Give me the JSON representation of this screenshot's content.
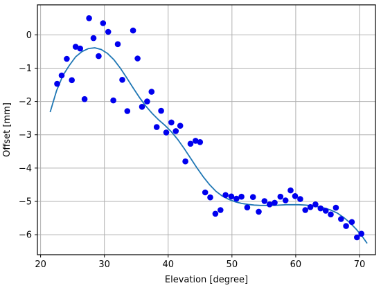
{
  "chart_data": {
    "type": "scatter",
    "xlabel": "Elevation [degree]",
    "ylabel": "Offset [mm]",
    "xlim": [
      19.5,
      72.5
    ],
    "ylim": [
      -6.6,
      0.9
    ],
    "x_ticks": [
      20,
      30,
      40,
      50,
      60,
      70
    ],
    "y_ticks": [
      0,
      -1,
      -2,
      -3,
      -4,
      -5,
      -6
    ],
    "grid": true,
    "colors": {
      "points": "#0000ee",
      "fit": "#1f77b4",
      "grid": "#b0b0b0"
    },
    "points": [
      [
        22.6,
        -1.47
      ],
      [
        23.3,
        -1.22
      ],
      [
        24.1,
        -0.72
      ],
      [
        24.9,
        -1.36
      ],
      [
        25.5,
        -0.36
      ],
      [
        26.2,
        -0.41
      ],
      [
        26.9,
        -1.93
      ],
      [
        27.6,
        0.5
      ],
      [
        28.3,
        -0.1
      ],
      [
        29.1,
        -0.64
      ],
      [
        29.8,
        0.35
      ],
      [
        30.6,
        0.09
      ],
      [
        31.4,
        -1.97
      ],
      [
        32.1,
        -0.28
      ],
      [
        32.8,
        -1.35
      ],
      [
        33.6,
        -2.29
      ],
      [
        34.5,
        0.13
      ],
      [
        35.2,
        -0.71
      ],
      [
        35.9,
        -2.16
      ],
      [
        36.7,
        -2.0
      ],
      [
        37.4,
        -1.71
      ],
      [
        38.2,
        -2.77
      ],
      [
        38.9,
        -2.28
      ],
      [
        39.7,
        -2.93
      ],
      [
        40.5,
        -2.63
      ],
      [
        41.2,
        -2.89
      ],
      [
        41.9,
        -2.73
      ],
      [
        42.7,
        -3.8
      ],
      [
        43.5,
        -3.27
      ],
      [
        44.3,
        -3.18
      ],
      [
        45.0,
        -3.22
      ],
      [
        45.8,
        -4.73
      ],
      [
        46.6,
        -4.88
      ],
      [
        47.4,
        -5.37
      ],
      [
        48.2,
        -5.26
      ],
      [
        49.0,
        -4.81
      ],
      [
        49.9,
        -4.85
      ],
      [
        50.7,
        -4.92
      ],
      [
        51.5,
        -4.86
      ],
      [
        52.4,
        -5.18
      ],
      [
        53.3,
        -4.87
      ],
      [
        54.2,
        -5.31
      ],
      [
        55.1,
        -4.99
      ],
      [
        55.9,
        -5.09
      ],
      [
        56.7,
        -5.04
      ],
      [
        57.6,
        -4.86
      ],
      [
        58.4,
        -4.97
      ],
      [
        59.2,
        -4.67
      ],
      [
        59.9,
        -4.84
      ],
      [
        60.7,
        -4.93
      ],
      [
        61.5,
        -5.26
      ],
      [
        62.3,
        -5.17
      ],
      [
        63.1,
        -5.09
      ],
      [
        63.9,
        -5.21
      ],
      [
        64.7,
        -5.28
      ],
      [
        65.5,
        -5.39
      ],
      [
        66.3,
        -5.19
      ],
      [
        67.1,
        -5.53
      ],
      [
        67.9,
        -5.74
      ],
      [
        68.8,
        -5.62
      ],
      [
        69.6,
        -6.08
      ],
      [
        70.3,
        -5.97
      ]
    ],
    "fit_curve": [
      [
        21.5,
        -2.32
      ],
      [
        22.5,
        -1.68
      ],
      [
        23.5,
        -1.22
      ],
      [
        24.5,
        -0.92
      ],
      [
        25.5,
        -0.66
      ],
      [
        26.5,
        -0.5
      ],
      [
        27.5,
        -0.41
      ],
      [
        28.5,
        -0.39
      ],
      [
        29.5,
        -0.44
      ],
      [
        30.5,
        -0.56
      ],
      [
        31.5,
        -0.75
      ],
      [
        32.5,
        -1.0
      ],
      [
        33.5,
        -1.29
      ],
      [
        34.5,
        -1.59
      ],
      [
        35.5,
        -1.88
      ],
      [
        36.5,
        -2.14
      ],
      [
        37.5,
        -2.36
      ],
      [
        38.5,
        -2.55
      ],
      [
        39.5,
        -2.72
      ],
      [
        40.5,
        -2.91
      ],
      [
        41.5,
        -3.14
      ],
      [
        42.5,
        -3.41
      ],
      [
        43.5,
        -3.7
      ],
      [
        44.5,
        -3.99
      ],
      [
        45.5,
        -4.26
      ],
      [
        46.5,
        -4.5
      ],
      [
        47.5,
        -4.7
      ],
      [
        48.5,
        -4.84
      ],
      [
        49.5,
        -4.94
      ],
      [
        50.5,
        -5.01
      ],
      [
        51.5,
        -5.06
      ],
      [
        52.5,
        -5.09
      ],
      [
        53.5,
        -5.11
      ],
      [
        54.5,
        -5.12
      ],
      [
        55.5,
        -5.12
      ],
      [
        56.5,
        -5.12
      ],
      [
        57.5,
        -5.11
      ],
      [
        58.5,
        -5.1
      ],
      [
        59.5,
        -5.1
      ],
      [
        60.5,
        -5.1
      ],
      [
        61.5,
        -5.11
      ],
      [
        62.5,
        -5.13
      ],
      [
        63.5,
        -5.16
      ],
      [
        64.5,
        -5.2
      ],
      [
        65.5,
        -5.26
      ],
      [
        66.5,
        -5.35
      ],
      [
        67.5,
        -5.48
      ],
      [
        68.5,
        -5.64
      ],
      [
        69.5,
        -5.84
      ],
      [
        70.5,
        -6.07
      ],
      [
        71.2,
        -6.26
      ]
    ]
  }
}
